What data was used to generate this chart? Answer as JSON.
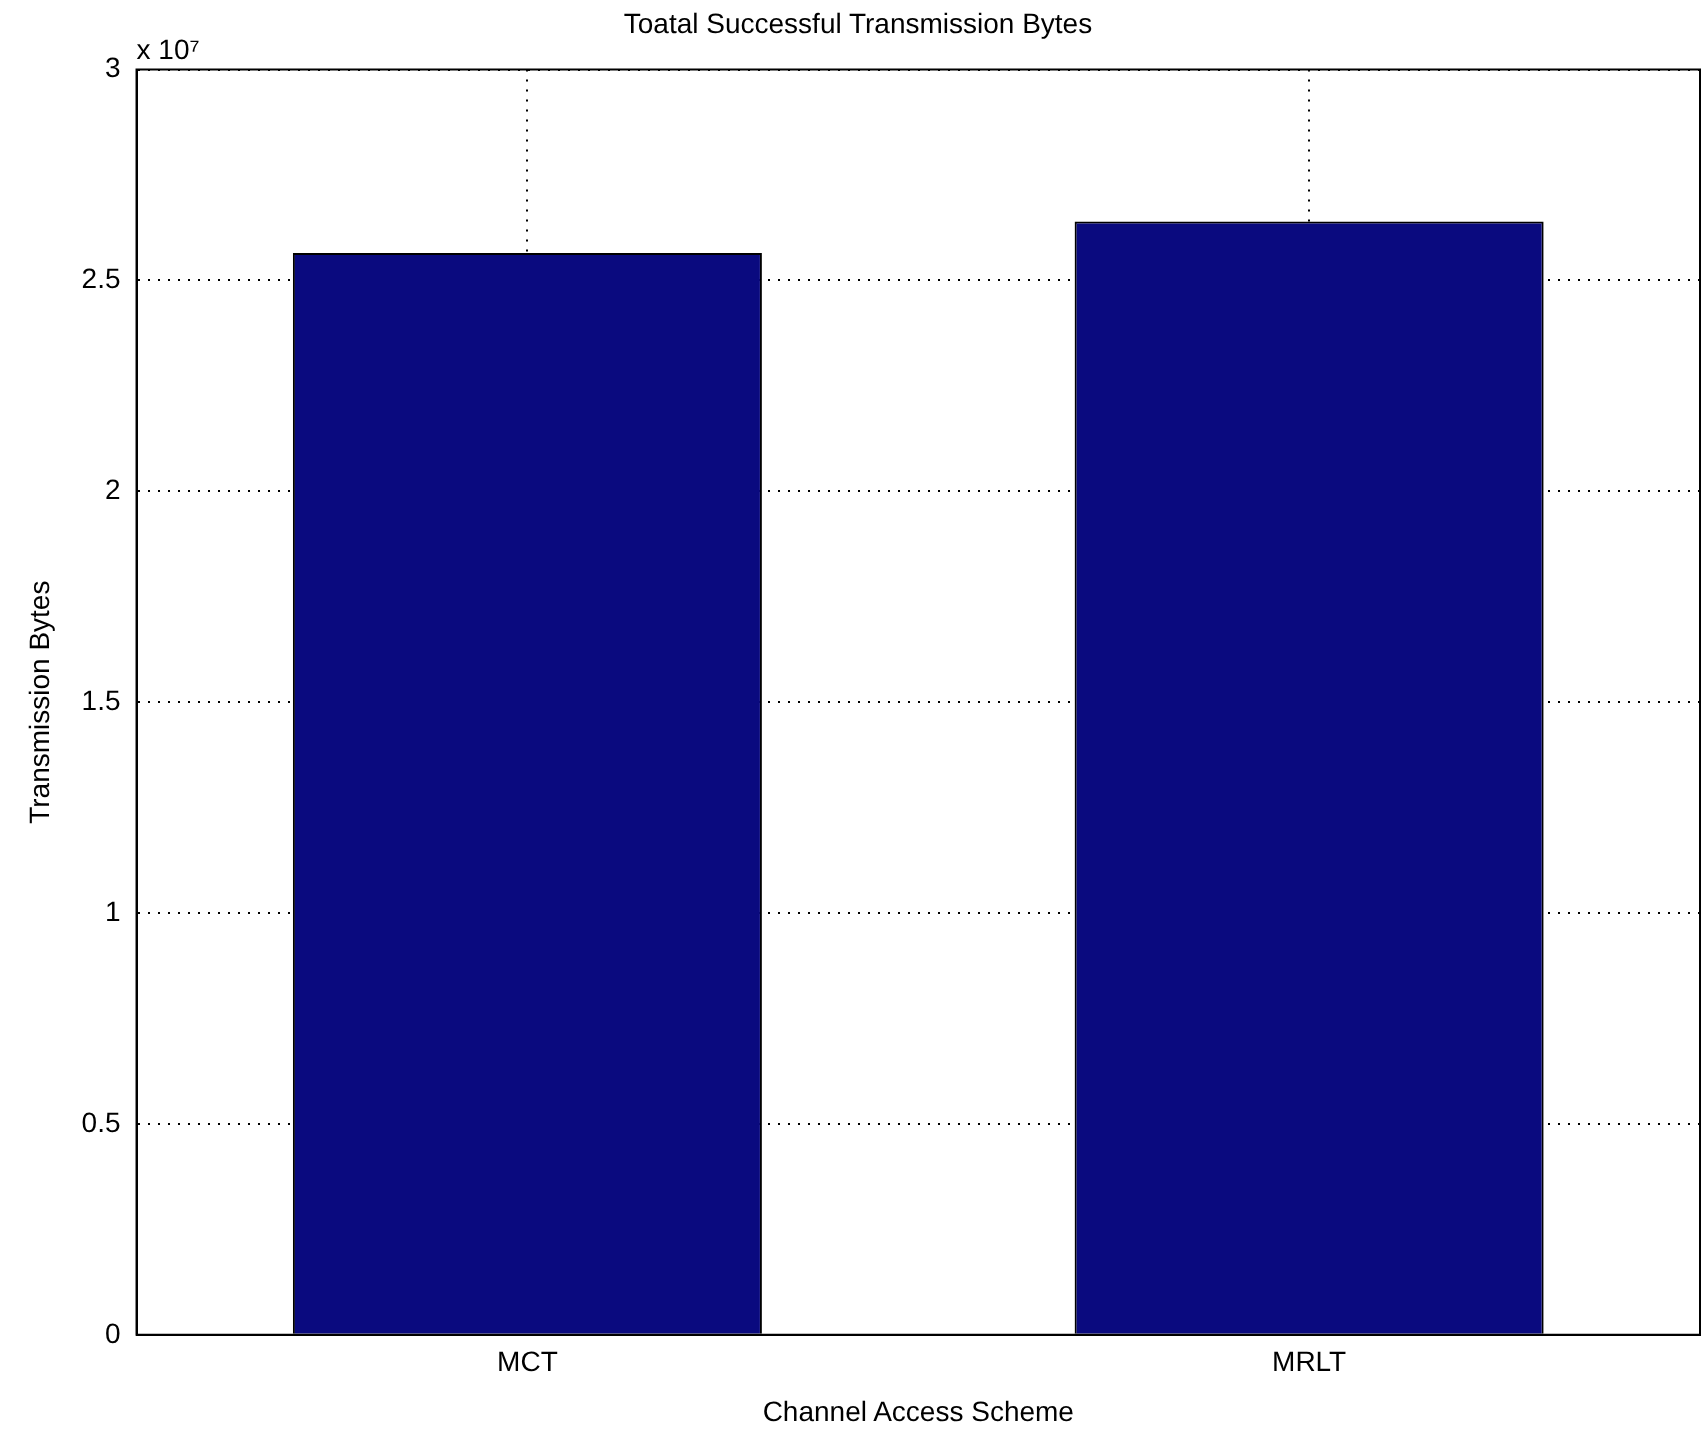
{
  "chart_data": {
    "type": "bar",
    "title": "Toatal Successful Transmission Bytes",
    "xlabel": "Channel Access Scheme",
    "ylabel": "Transmission Bytes",
    "categories": [
      "MCT",
      "MRLT"
    ],
    "values": [
      2.565,
      2.64
    ],
    "color": "#0a0a7f",
    "ylim": [
      0,
      3
    ],
    "yticks": [
      0,
      0.5,
      1,
      1.5,
      2,
      2.5,
      3
    ],
    "annotations": [
      "x 10⁷"
    ],
    "grid": true
  }
}
